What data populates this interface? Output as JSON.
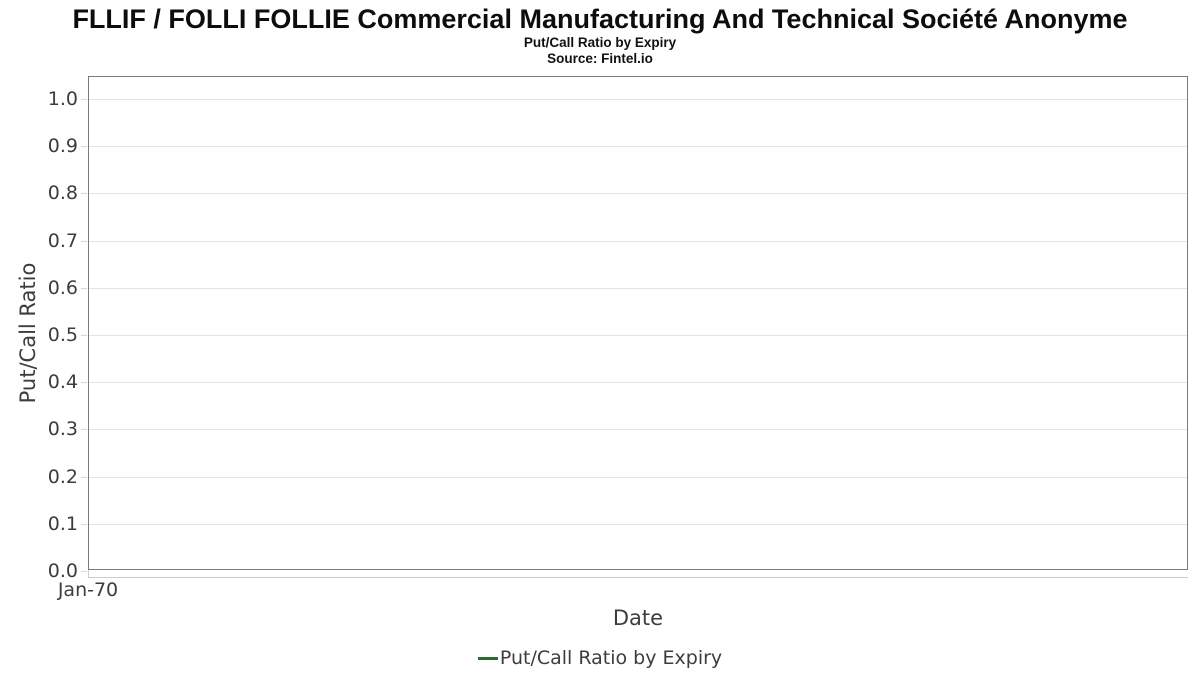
{
  "header": {
    "title": "FLLIF / FOLLI FOLLIE Commercial Manufacturing And Technical Société Anonyme",
    "subtitle": "Put/Call Ratio by Expiry",
    "source": "Source: Fintel.io"
  },
  "chart_data": {
    "type": "line",
    "title": "Put/Call Ratio by Expiry",
    "xlabel": "Date",
    "ylabel": "Put/Call Ratio",
    "x_tick_labels": [
      "Jan-70"
    ],
    "y_tick_labels": [
      "0.0",
      "0.1",
      "0.2",
      "0.3",
      "0.4",
      "0.5",
      "0.6",
      "0.7",
      "0.8",
      "0.9",
      "1.0"
    ],
    "y_ticks": [
      0.0,
      0.1,
      0.2,
      0.3,
      0.4,
      0.5,
      0.6,
      0.7,
      0.8,
      0.9,
      1.0
    ],
    "ylim": [
      0.0,
      1.05
    ],
    "grid": "horizontal",
    "legend_position": "bottom-center",
    "series": [
      {
        "name": "Put/Call Ratio by Expiry",
        "color": "#2d6a31",
        "x": [],
        "values": []
      }
    ]
  },
  "legend": {
    "label": "Put/Call Ratio by Expiry",
    "marker_color": "#2d6a31"
  },
  "colors": {
    "plot_border": "#7b7b7b",
    "gridline": "#e4e4e4",
    "tick": "#d6d6d6",
    "text": "#3d3d3d",
    "title_text": "#0d0d0d",
    "series_green": "#2d6a31"
  }
}
